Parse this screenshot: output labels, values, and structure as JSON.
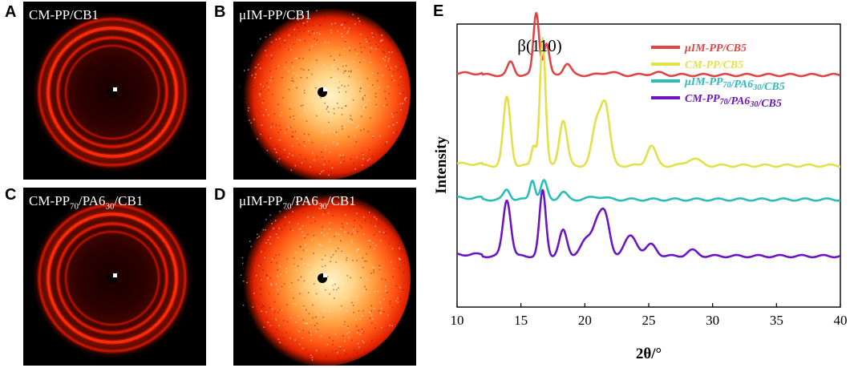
{
  "panels": [
    {
      "letter": "A",
      "title_parts": [
        {
          "t": "CM-PP/CB1"
        }
      ],
      "pattern": "rings"
    },
    {
      "letter": "B",
      "title_parts": [
        {
          "t": "μIM-PP/CB1"
        }
      ],
      "pattern": "diffuse"
    },
    {
      "letter": "C",
      "title_parts": [
        {
          "t": "CM-PP"
        },
        {
          "t": "70",
          "sub": true
        },
        {
          "t": "/PA6"
        },
        {
          "t": "30",
          "sub": true
        },
        {
          "t": "/CB1"
        }
      ],
      "pattern": "rings"
    },
    {
      "letter": "D",
      "title_parts": [
        {
          "t": "μIM-PP"
        },
        {
          "t": "70",
          "sub": true
        },
        {
          "t": "/PA6"
        },
        {
          "t": "30",
          "sub": true
        },
        {
          "t": "/CB1"
        }
      ],
      "pattern": "diffuse"
    }
  ],
  "chart_data": {
    "panel_letter": "E",
    "type": "line",
    "xlabel": "2θ/°",
    "ylabel": "Intensity",
    "xlim": [
      10,
      40
    ],
    "xticks": [
      10,
      15,
      20,
      25,
      30,
      35,
      40
    ],
    "yticks": [],
    "annotation": {
      "text": "β(110)",
      "x": 16.2
    },
    "series": [
      {
        "name": "μIM-PP/CB5",
        "name_parts": [
          {
            "t": "μIM-PP/CB5"
          }
        ],
        "color": "#e04545",
        "baseline": 0.82,
        "peaks": [
          [
            14.2,
            0.045,
            0.25
          ],
          [
            16.2,
            0.22,
            0.22
          ],
          [
            17.0,
            0.11,
            0.22
          ],
          [
            18.6,
            0.04,
            0.3
          ],
          [
            21.9,
            0.01,
            0.5
          ],
          [
            25.6,
            0.008,
            0.5
          ]
        ]
      },
      {
        "name": "CM-PP/CB5",
        "name_parts": [
          {
            "t": "CM-PP/CB5"
          }
        ],
        "color": "#e3e04a",
        "baseline": 0.5,
        "peaks": [
          [
            13.9,
            0.24,
            0.28
          ],
          [
            16.0,
            0.07,
            0.18
          ],
          [
            16.7,
            0.45,
            0.22
          ],
          [
            18.3,
            0.16,
            0.3
          ],
          [
            20.9,
            0.14,
            0.35
          ],
          [
            21.6,
            0.21,
            0.35
          ],
          [
            25.2,
            0.07,
            0.35
          ],
          [
            28.5,
            0.025,
            0.5
          ]
        ]
      },
      {
        "name": "μIM-PP70/PA630/CB5",
        "name_parts": [
          {
            "t": "μIM-PP"
          },
          {
            "t": "70",
            "sub": true
          },
          {
            "t": "/PA6"
          },
          {
            "t": "30",
            "sub": true
          },
          {
            "t": "/CB5"
          }
        ],
        "color": "#2bbdb7",
        "baseline": 0.38,
        "peaks": [
          [
            13.9,
            0.035,
            0.25
          ],
          [
            15.9,
            0.07,
            0.2
          ],
          [
            16.8,
            0.065,
            0.25
          ],
          [
            18.3,
            0.025,
            0.3
          ],
          [
            21.0,
            0.01,
            0.6
          ]
        ]
      },
      {
        "name": "CM-PP70/PA630/CB5",
        "name_parts": [
          {
            "t": "CM-PP"
          },
          {
            "t": "70",
            "sub": true
          },
          {
            "t": "/PA6"
          },
          {
            "t": "30",
            "sub": true
          },
          {
            "t": "/CB5"
          }
        ],
        "color": "#6a16c4",
        "baseline": 0.18,
        "peaks": [
          [
            13.9,
            0.2,
            0.3
          ],
          [
            16.7,
            0.23,
            0.25
          ],
          [
            18.3,
            0.09,
            0.3
          ],
          [
            20.2,
            0.06,
            0.5
          ],
          [
            21.0,
            0.1,
            0.35
          ],
          [
            21.6,
            0.13,
            0.35
          ],
          [
            23.6,
            0.07,
            0.5
          ],
          [
            25.2,
            0.04,
            0.4
          ],
          [
            28.4,
            0.02,
            0.4
          ]
        ]
      }
    ]
  }
}
